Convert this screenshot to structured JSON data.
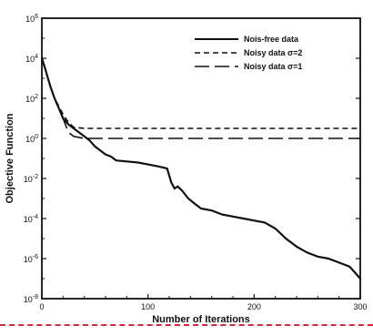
{
  "chart_data": {
    "type": "line",
    "title": "",
    "xlabel": "Number of Iterations",
    "ylabel": "Objective Function",
    "xlim": [
      0,
      300
    ],
    "ylim_log10": [
      -8,
      6
    ],
    "yscale": "log",
    "grid": false,
    "legend_placement": "top-right",
    "x_ticks": [
      "0",
      "100",
      "200",
      "300"
    ],
    "y_ticks": [
      {
        "base": "10",
        "exp": "6"
      },
      {
        "base": "10",
        "exp": "4"
      },
      {
        "base": "10",
        "exp": "2"
      },
      {
        "base": "10",
        "exp": "0"
      },
      {
        "base": "10",
        "exp": "-2"
      },
      {
        "base": "10",
        "exp": "-4"
      },
      {
        "base": "10",
        "exp": "-6"
      },
      {
        "base": "10",
        "exp": "-8"
      }
    ],
    "series": [
      {
        "name": "Nois-free data",
        "style": "solid",
        "x": [
          0,
          3,
          8,
          12,
          16,
          20,
          25,
          30,
          35,
          40,
          45,
          50,
          55,
          60,
          65,
          70,
          80,
          90,
          100,
          110,
          118,
          122,
          125,
          128,
          132,
          138,
          145,
          150,
          160,
          170,
          180,
          190,
          200,
          210,
          220,
          230,
          240,
          250,
          260,
          270,
          280,
          290,
          295,
          300
        ],
        "y": [
          4.0,
          3.5,
          2.6,
          2.0,
          1.5,
          1.0,
          0.7,
          0.5,
          0.3,
          0.1,
          -0.1,
          -0.4,
          -0.6,
          -0.8,
          -0.9,
          -1.1,
          -1.15,
          -1.2,
          -1.3,
          -1.4,
          -1.5,
          -2.2,
          -2.5,
          -2.4,
          -2.6,
          -3.0,
          -3.3,
          -3.5,
          -3.6,
          -3.8,
          -3.9,
          -4.0,
          -4.1,
          -4.2,
          -4.5,
          -5.0,
          -5.4,
          -5.7,
          -5.9,
          -6.0,
          -6.2,
          -6.4,
          -6.7,
          -7.0
        ]
      },
      {
        "name": "Noisy data σ=2",
        "style": "short-dash",
        "x": [
          0,
          3,
          8,
          12,
          16,
          20,
          25,
          30,
          40,
          60,
          100,
          150,
          200,
          250,
          300
        ],
        "y": [
          4.0,
          3.5,
          2.6,
          2.0,
          1.6,
          1.2,
          0.8,
          0.56,
          0.5,
          0.5,
          0.5,
          0.5,
          0.5,
          0.5,
          0.5
        ]
      },
      {
        "name": "Noisy data σ=1",
        "style": "long-dash",
        "x": [
          0,
          3,
          8,
          12,
          16,
          20,
          25,
          30,
          40,
          60,
          100,
          150,
          200,
          250,
          300
        ],
        "y": [
          4.0,
          3.5,
          2.6,
          2.0,
          1.5,
          1.0,
          0.3,
          0.1,
          0.0,
          0.0,
          0.0,
          0.0,
          0.0,
          0.0,
          0.0
        ]
      }
    ],
    "colors": {
      "line": "#111111",
      "frame": "#111111",
      "divider": "#d9263b"
    }
  }
}
